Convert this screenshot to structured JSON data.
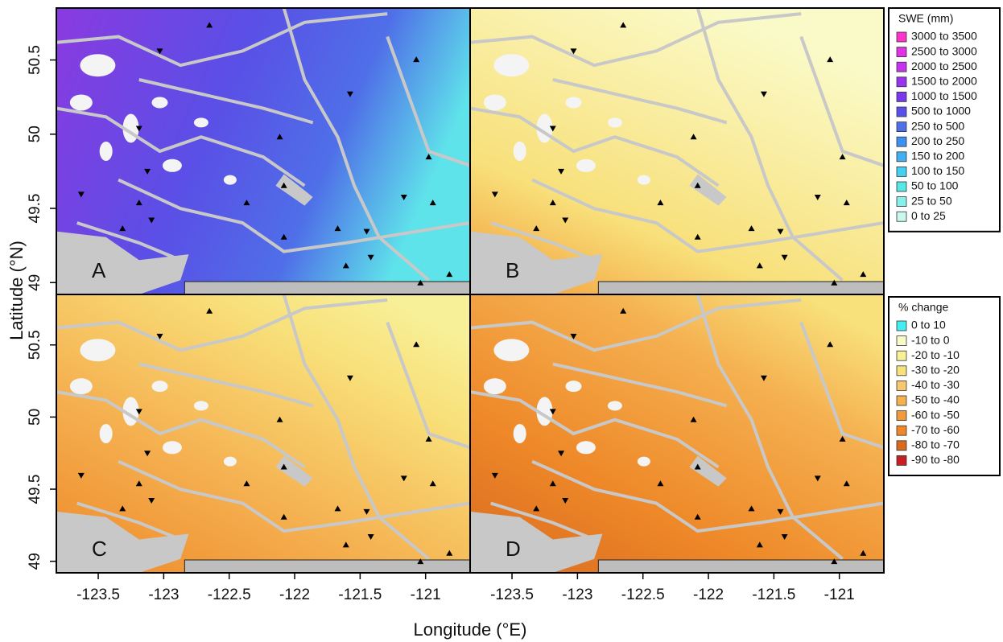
{
  "panels": [
    {
      "label": "A"
    },
    {
      "label": "B"
    },
    {
      "label": "C"
    },
    {
      "label": "D"
    }
  ],
  "axes": {
    "x_label": "Longitude (°E)",
    "y_label": "Latitude (°N)",
    "xlim": [
      -123.82,
      -120.66
    ],
    "ylim": [
      48.92,
      50.85
    ],
    "xticks": [
      -123.5,
      -123,
      -122.5,
      -122,
      -121.5,
      -121
    ],
    "yticks": [
      50.5,
      50,
      49.5,
      49
    ]
  },
  "legends": [
    {
      "title": "SWE (mm)",
      "entries": [
        {
          "label": "3000 to 3500",
          "color": "#ff33cc"
        },
        {
          "label": "2500 to 3000",
          "color": "#e033e6"
        },
        {
          "label": "2000 to 2500",
          "color": "#c433ee"
        },
        {
          "label": "1500 to 2000",
          "color": "#9933ee"
        },
        {
          "label": "1000 to 1500",
          "color": "#7a38e8"
        },
        {
          "label": "500 to 1000",
          "color": "#5a4fe6"
        },
        {
          "label": "250 to 500",
          "color": "#4f6fe8"
        },
        {
          "label": "200 to 250",
          "color": "#3f8fee"
        },
        {
          "label": "150 to 200",
          "color": "#3fb0f0"
        },
        {
          "label": "100 to 150",
          "color": "#44d0ee"
        },
        {
          "label": "50 to 100",
          "color": "#55e6e6"
        },
        {
          "label": "25 to 50",
          "color": "#88f0ea"
        },
        {
          "label": "0 to 25",
          "color": "#c8f8ee"
        }
      ]
    },
    {
      "title": "% change",
      "entries": [
        {
          "label": "0 to 10",
          "color": "#44eef0"
        },
        {
          "label": "-10 to 0",
          "color": "#fafac8"
        },
        {
          "label": "-20 to -10",
          "color": "#f8f098"
        },
        {
          "label": "-30 to -20",
          "color": "#f8e07a"
        },
        {
          "label": "-40 to -30",
          "color": "#f8c870"
        },
        {
          "label": "-50 to -40",
          "color": "#f5b050"
        },
        {
          "label": "-60 to -50",
          "color": "#f29a38"
        },
        {
          "label": "-70 to -60",
          "color": "#ee8828"
        },
        {
          "label": "-80 to -70",
          "color": "#d86a20"
        },
        {
          "label": "-90 to -80",
          "color": "#c82020"
        }
      ]
    }
  ]
}
